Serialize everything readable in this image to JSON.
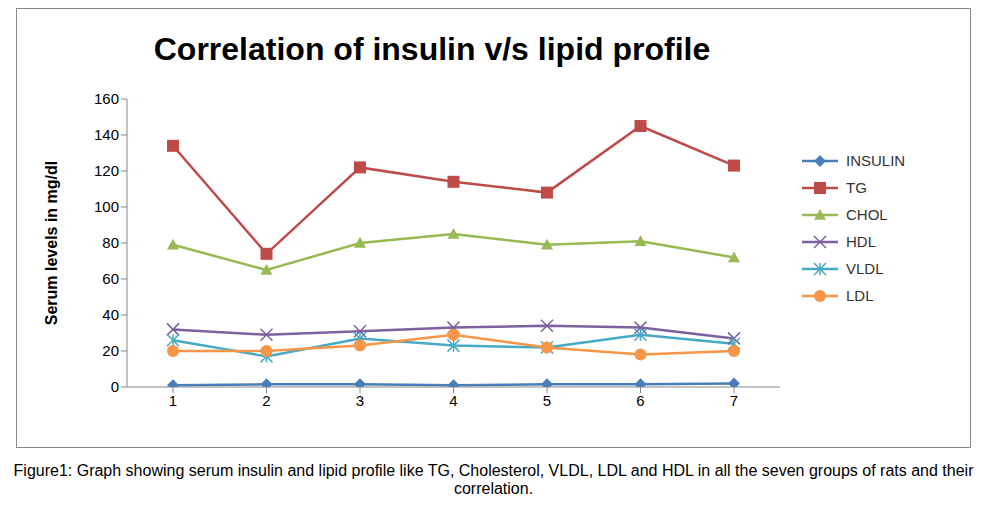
{
  "chart_data": {
    "type": "line",
    "title": "Correlation of insulin v/s lipid profile",
    "y_label": "Serum levels in mg/dl",
    "caption": "Figure1: Graph showing serum insulin and lipid profile like TG, Cholesterol, VLDL, LDL and HDL in all the seven groups of rats and their correlation.",
    "categories": [
      "1",
      "2",
      "3",
      "4",
      "5",
      "6",
      "7"
    ],
    "ylim": [
      0,
      160
    ],
    "yticks": [
      0,
      20,
      40,
      60,
      80,
      100,
      120,
      140,
      160
    ],
    "grid": false,
    "legend": "right",
    "series": [
      {
        "name": "INSULIN",
        "color": "#4a7ebb",
        "marker": "diamond",
        "values": [
          1,
          1.5,
          1.5,
          1,
          1.5,
          1.5,
          2
        ]
      },
      {
        "name": "TG",
        "color": "#be4b48",
        "marker": "square",
        "values": [
          134,
          74,
          122,
          114,
          108,
          145,
          123
        ]
      },
      {
        "name": "CHOL",
        "color": "#98b954",
        "marker": "triangle",
        "values": [
          79,
          65,
          80,
          85,
          79,
          81,
          72
        ]
      },
      {
        "name": "HDL",
        "color": "#7d60a0",
        "marker": "x",
        "values": [
          32,
          29,
          31,
          33,
          34,
          33,
          27
        ]
      },
      {
        "name": "VLDL",
        "color": "#46aac5",
        "marker": "asterisk",
        "values": [
          26,
          17,
          27,
          23,
          22,
          29,
          24
        ]
      },
      {
        "name": "LDL",
        "color": "#f79646",
        "marker": "circle",
        "values": [
          20,
          20,
          23,
          29,
          22,
          18,
          20
        ]
      }
    ]
  }
}
